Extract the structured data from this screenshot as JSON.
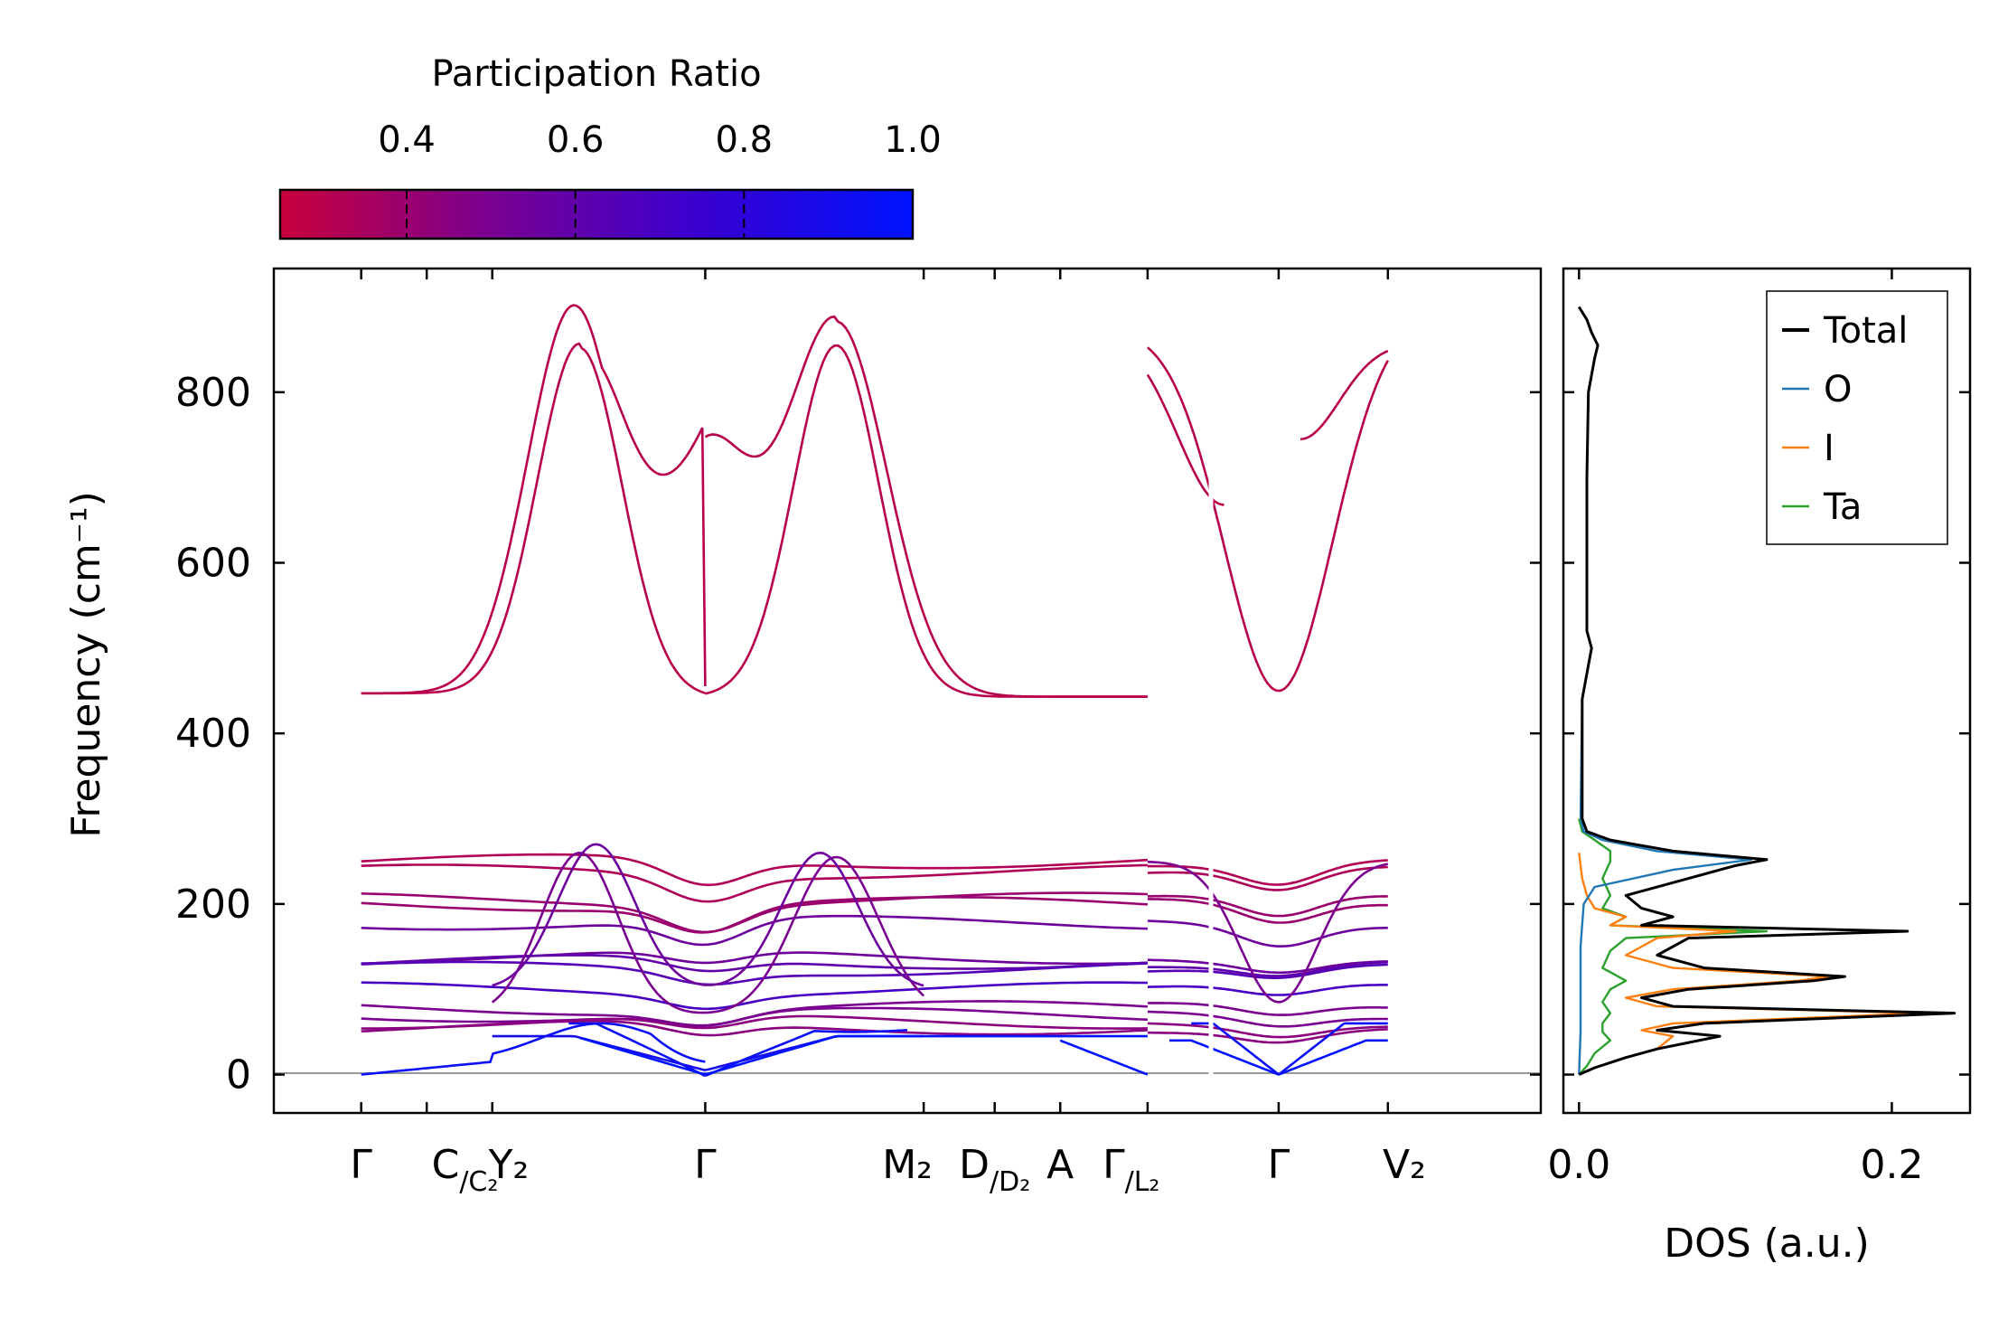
{
  "chart_data": [
    {
      "type": "line",
      "title": "",
      "xlabel": "",
      "ylabel": "Frequency (cm⁻¹)",
      "ylim": [
        -45,
        945
      ],
      "yticks": [
        0,
        200,
        400,
        600,
        800
      ],
      "xlim": [
        -0.08,
        1.08
      ],
      "path_segments": [
        {
          "name": "segment-1",
          "x_range": [
            0.0,
            0.72
          ]
        },
        {
          "name": "segment-2",
          "x_range": [
            0.72,
            1.0
          ]
        }
      ],
      "high_symbol_points": [
        {
          "label": "Γ",
          "x": 0.0
        },
        {
          "label": "C/C₂",
          "x": 0.12
        },
        {
          "label": "Y₂",
          "x": 0.12
        },
        {
          "label": "Γ",
          "x": 0.315
        },
        {
          "label": "M₂",
          "x": 0.515
        },
        {
          "label": "D/D₂",
          "x": 0.515
        },
        {
          "label": "A",
          "x": 0.64
        },
        {
          "label": "Γ/L₂",
          "x": 0.72
        },
        {
          "label": "Γ",
          "x": 0.84
        },
        {
          "label": "V₂",
          "x": 0.94
        }
      ],
      "x_tick_labels": [
        {
          "text": "Γ",
          "sub": "",
          "x": 0.0
        },
        {
          "text": "C",
          "sub": "C₂",
          "x": 0.095
        },
        {
          "text": "Y₂",
          "sub": "",
          "x": 0.135
        },
        {
          "text": "Γ",
          "sub": "",
          "x": 0.315
        },
        {
          "text": "M₂",
          "sub": "",
          "x": 0.5
        },
        {
          "text": "D",
          "sub": "D₂",
          "x": 0.58
        },
        {
          "text": "A",
          "sub": "",
          "x": 0.64
        },
        {
          "text": "Γ",
          "sub": "L₂",
          "x": 0.705
        },
        {
          "text": "Γ",
          "sub": "",
          "x": 0.84
        },
        {
          "text": "V₂",
          "sub": "",
          "x": 0.955
        }
      ],
      "coloring": "participation ratio (colorbar)",
      "bands_description": {
        "acoustic_max": 60,
        "low_optical_range": [
          40,
          90
        ],
        "mid_optical_range": [
          90,
          200
        ],
        "upper_optical_range": [
          200,
          280
        ],
        "high_frequency_range": [
          440,
          900
        ]
      },
      "zero_line": 0
    },
    {
      "type": "line",
      "title": "",
      "xlabel": "DOS (a.u.)",
      "ylabel": "",
      "xlim": [
        -0.01,
        0.25
      ],
      "xticks": [
        0.0,
        0.2
      ],
      "xtick_labels": [
        "0.0",
        "0.2"
      ],
      "ylim": [
        -45,
        945
      ],
      "legend_position": "top-right",
      "series": [
        {
          "name": "Total",
          "color": "#000000",
          "points": [
            [
              0,
              0
            ],
            [
              0.01,
              8
            ],
            [
              0.03,
              20
            ],
            [
              0.05,
              30
            ],
            [
              0.09,
              45
            ],
            [
              0.05,
              52
            ],
            [
              0.08,
              60
            ],
            [
              0.24,
              72
            ],
            [
              0.06,
              80
            ],
            [
              0.04,
              90
            ],
            [
              0.07,
              100
            ],
            [
              0.15,
              110
            ],
            [
              0.17,
              115
            ],
            [
              0.08,
              125
            ],
            [
              0.05,
              140
            ],
            [
              0.07,
              160
            ],
            [
              0.21,
              168
            ],
            [
              0.04,
              175
            ],
            [
              0.06,
              185
            ],
            [
              0.04,
              195
            ],
            [
              0.03,
              210
            ],
            [
              0.07,
              230
            ],
            [
              0.1,
              245
            ],
            [
              0.12,
              252
            ],
            [
              0.06,
              262
            ],
            [
              0.02,
              275
            ],
            [
              0.005,
              285
            ],
            [
              0.002,
              300
            ],
            [
              0.002,
              440
            ],
            [
              0.006,
              480
            ],
            [
              0.008,
              500
            ],
            [
              0.005,
              520
            ],
            [
              0.005,
              700
            ],
            [
              0.006,
              800
            ],
            [
              0.01,
              840
            ],
            [
              0.012,
              855
            ],
            [
              0.008,
              870
            ],
            [
              0.005,
              885
            ],
            [
              0.0,
              900
            ]
          ]
        },
        {
          "name": "O",
          "color": "#1f77b4",
          "points": [
            [
              0,
              0
            ],
            [
              0.001,
              50
            ],
            [
              0.001,
              150
            ],
            [
              0.003,
              200
            ],
            [
              0.01,
              220
            ],
            [
              0.06,
              240
            ],
            [
              0.11,
              252
            ],
            [
              0.05,
              262
            ],
            [
              0.015,
              275
            ],
            [
              0.003,
              285
            ],
            [
              0.001,
              300
            ],
            [
              0.002,
              440
            ],
            [
              0.006,
              480
            ],
            [
              0.008,
              500
            ],
            [
              0.005,
              520
            ],
            [
              0.005,
              700
            ],
            [
              0.006,
              800
            ],
            [
              0.01,
              840
            ],
            [
              0.012,
              855
            ],
            [
              0.008,
              870
            ],
            [
              0.005,
              885
            ],
            [
              0.0,
              900
            ]
          ]
        },
        {
          "name": "I",
          "color": "#ff7f0e",
          "points": [
            [
              0,
              0
            ],
            [
              0.01,
              8
            ],
            [
              0.03,
              20
            ],
            [
              0.05,
              30
            ],
            [
              0.06,
              45
            ],
            [
              0.04,
              52
            ],
            [
              0.06,
              60
            ],
            [
              0.22,
              72
            ],
            [
              0.05,
              80
            ],
            [
              0.03,
              90
            ],
            [
              0.06,
              100
            ],
            [
              0.14,
              110
            ],
            [
              0.16,
              115
            ],
            [
              0.06,
              125
            ],
            [
              0.03,
              140
            ],
            [
              0.05,
              160
            ],
            [
              0.1,
              168
            ],
            [
              0.02,
              175
            ],
            [
              0.03,
              185
            ],
            [
              0.01,
              195
            ],
            [
              0.005,
              210
            ],
            [
              0.002,
              230
            ],
            [
              0.0,
              260
            ]
          ]
        },
        {
          "name": "Ta",
          "color": "#2ca02c",
          "points": [
            [
              0,
              0
            ],
            [
              0.005,
              10
            ],
            [
              0.01,
              25
            ],
            [
              0.02,
              40
            ],
            [
              0.015,
              50
            ],
            [
              0.015,
              60
            ],
            [
              0.02,
              72
            ],
            [
              0.015,
              85
            ],
            [
              0.02,
              100
            ],
            [
              0.03,
              110
            ],
            [
              0.015,
              125
            ],
            [
              0.02,
              145
            ],
            [
              0.03,
              160
            ],
            [
              0.12,
              168
            ],
            [
              0.02,
              175
            ],
            [
              0.03,
              185
            ],
            [
              0.015,
              195
            ],
            [
              0.02,
              210
            ],
            [
              0.015,
              230
            ],
            [
              0.02,
              250
            ],
            [
              0.02,
              262
            ],
            [
              0.01,
              275
            ],
            [
              0.002,
              285
            ],
            [
              0.0,
              300
            ]
          ]
        }
      ]
    }
  ],
  "colorbar": {
    "title": "Participation Ratio",
    "range": [
      0.25,
      1.0
    ],
    "ticks": [
      0.4,
      0.6,
      0.8,
      1.0
    ],
    "tick_labels": [
      "0.4",
      "0.6",
      "0.8",
      "1.0"
    ],
    "colors": [
      "#c8003c",
      "#7a0090",
      "#3a00d0",
      "#0014ff"
    ]
  },
  "legend": {
    "items": [
      {
        "label": "Total",
        "color": "#000000"
      },
      {
        "label": "O",
        "color": "#1f77b4"
      },
      {
        "label": "I",
        "color": "#ff7f0e"
      },
      {
        "label": "Ta",
        "color": "#2ca02c"
      }
    ]
  }
}
